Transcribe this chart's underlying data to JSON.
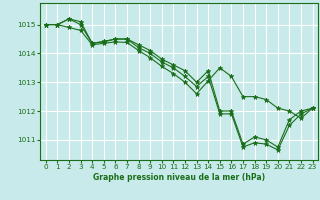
{
  "background_color": "#c8eaea",
  "grid_color": "#ffffff",
  "line_color": "#1a6e1a",
  "marker_color": "#1a6e1a",
  "title": "Graphe pression niveau de la mer (hPa)",
  "xlim": [
    -0.5,
    23.5
  ],
  "ylim": [
    1010.3,
    1015.75
  ],
  "yticks": [
    1011,
    1012,
    1013,
    1014,
    1015
  ],
  "xticks": [
    0,
    1,
    2,
    3,
    4,
    5,
    6,
    7,
    8,
    9,
    10,
    11,
    12,
    13,
    14,
    15,
    16,
    17,
    18,
    19,
    20,
    21,
    22,
    23
  ],
  "series1": [
    1015.0,
    1015.0,
    1015.2,
    1015.0,
    1014.35,
    1014.4,
    1014.5,
    1014.5,
    1014.2,
    1014.0,
    1013.7,
    1013.5,
    1013.2,
    1012.85,
    1013.2,
    1011.9,
    1011.9,
    1010.75,
    1010.9,
    1010.85,
    1010.65,
    1011.5,
    1011.9,
    1012.1
  ],
  "series2": [
    1015.0,
    1015.0,
    1015.2,
    1015.1,
    1014.35,
    1014.42,
    1014.5,
    1014.5,
    1014.3,
    1014.1,
    1013.8,
    1013.6,
    1013.4,
    1013.0,
    1013.4,
    1012.0,
    1012.0,
    1010.85,
    1011.1,
    1011.0,
    1010.75,
    1011.7,
    1012.0,
    1012.1
  ],
  "series3": [
    1015.0,
    1015.0,
    1014.9,
    1014.8,
    1014.3,
    1014.35,
    1014.4,
    1014.38,
    1014.1,
    1013.85,
    1013.55,
    1013.3,
    1013.0,
    1012.6,
    1013.05,
    1013.5,
    1013.2,
    1012.5,
    1012.5,
    1012.4,
    1012.1,
    1012.0,
    1011.75,
    1012.1
  ]
}
